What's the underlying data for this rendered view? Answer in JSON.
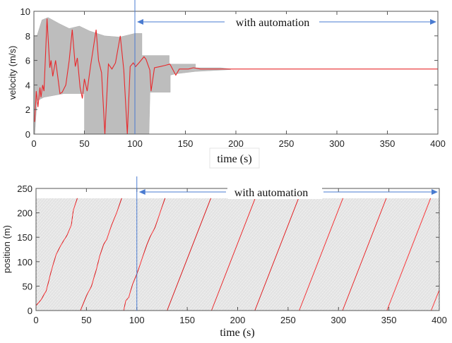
{
  "colors": {
    "trajectory": "#e8282b",
    "ensemble": "#bdbdbd",
    "annotation": "#4a7bd0",
    "axis": "#555555"
  },
  "chart_data": [
    {
      "type": "line",
      "ylabel": "velocity (m/s)",
      "xlabel": "time (s)",
      "xlim": [
        0,
        400
      ],
      "ylim": [
        0,
        10
      ],
      "xticks": [
        "0",
        "50",
        "100",
        "150",
        "200",
        "250",
        "300",
        "350",
        "400"
      ],
      "yticks": [
        "0",
        "2",
        "4",
        "6",
        "8",
        "10"
      ],
      "annotation": {
        "text": "with automation",
        "marker_time": 100,
        "arrow_from": 100,
        "arrow_to": 400
      },
      "series": [
        {
          "role": "highlighted vehicle",
          "color": "#e8282b",
          "points": [
            [
              0.7,
              1
            ],
            [
              2.3,
              3.5
            ],
            [
              4,
              2.2
            ],
            [
              6,
              3.8
            ],
            [
              7,
              3
            ],
            [
              8.7,
              4
            ],
            [
              10,
              3.5
            ],
            [
              13,
              9.4
            ],
            [
              15.7,
              5.4
            ],
            [
              17,
              6
            ],
            [
              18.7,
              4.7
            ],
            [
              21.5,
              6
            ],
            [
              23.4,
              4.8
            ],
            [
              25.8,
              3.3
            ],
            [
              28,
              3.4
            ],
            [
              31.6,
              4
            ],
            [
              35,
              6
            ],
            [
              38,
              8.5
            ],
            [
              41,
              5.5
            ],
            [
              43,
              6.2
            ],
            [
              45.7,
              3.8
            ],
            [
              48,
              2.9
            ],
            [
              50,
              4.5
            ],
            [
              52.7,
              3.5
            ],
            [
              56,
              5.5
            ],
            [
              61.6,
              8.5
            ],
            [
              64,
              6
            ],
            [
              67,
              5
            ],
            [
              70.3,
              0
            ],
            [
              73.8,
              5.7
            ],
            [
              77.3,
              5.3
            ],
            [
              80.8,
              5.8
            ],
            [
              85.5,
              8
            ],
            [
              89,
              5.2
            ],
            [
              92.5,
              0
            ],
            [
              95.3,
              5.5
            ],
            [
              98.4,
              5.8
            ],
            [
              100.7,
              5.5
            ],
            [
              104,
              5.8
            ],
            [
              109,
              6.3
            ],
            [
              111,
              6.1
            ],
            [
              114.8,
              5.2
            ],
            [
              116,
              3.5
            ],
            [
              119.4,
              5.4
            ],
            [
              125,
              5.5
            ],
            [
              130,
              5.6
            ],
            [
              134.7,
              5.7
            ],
            [
              140.5,
              4.8
            ],
            [
              144,
              5.3
            ],
            [
              153,
              5.3
            ],
            [
              158,
              5.4
            ],
            [
              165,
              5.3
            ],
            [
              188,
              5.3
            ],
            [
              400,
              5.3
            ]
          ]
        },
        {
          "role": "all vehicles (envelope)",
          "color": "#bdbdbd",
          "upper": [
            [
              0,
              8
            ],
            [
              3,
              8
            ],
            [
              8,
              9.3
            ],
            [
              14,
              9.5
            ],
            [
              25,
              9
            ],
            [
              35,
              8.6
            ],
            [
              45,
              8.8
            ],
            [
              55,
              8.4
            ],
            [
              70,
              8
            ],
            [
              85,
              7.9
            ],
            [
              100,
              8.2
            ],
            [
              107,
              8.2
            ],
            [
              107,
              6.4
            ],
            [
              134,
              6.4
            ],
            [
              134,
              5.7
            ],
            [
              160,
              5.7
            ],
            [
              160,
              5.4
            ],
            [
              185,
              5.4
            ],
            [
              195,
              5.3
            ]
          ],
          "lower": [
            [
              195,
              5.25
            ],
            [
              160,
              5.1
            ],
            [
              150,
              5
            ],
            [
              140,
              4.9
            ],
            [
              135,
              4.8
            ],
            [
              135,
              3.4
            ],
            [
              115,
              3.4
            ],
            [
              114,
              0
            ],
            [
              50,
              0
            ],
            [
              50,
              3.3
            ],
            [
              30,
              3.3
            ],
            [
              10,
              3
            ],
            [
              3,
              2.7
            ],
            [
              1,
              0
            ],
            [
              0,
              0
            ]
          ]
        }
      ]
    },
    {
      "type": "line",
      "ylabel": "position (m)",
      "xlabel": "time (s)",
      "xlim": [
        0,
        400
      ],
      "ylim": [
        0,
        250
      ],
      "xticks": [
        "0",
        "50",
        "100",
        "150",
        "200",
        "250",
        "300",
        "350",
        "400"
      ],
      "yticks": [
        "0",
        "50",
        "100",
        "150",
        "200",
        "250"
      ],
      "annotation": {
        "text": "with automation",
        "marker_time": 100,
        "arrow_from": 100,
        "arrow_to": 400
      },
      "ring_length": 230,
      "series": [
        {
          "role": "highlighted vehicle",
          "color": "#e8282b",
          "segments": [
            [
              [
                0,
                10
              ],
              [
                5,
                22
              ],
              [
                10,
                40
              ],
              [
                12,
                55
              ],
              [
                15,
                80
              ],
              [
                20,
                115
              ],
              [
                25,
                135
              ],
              [
                31,
                155
              ],
              [
                35,
                175
              ],
              [
                37,
                205
              ],
              [
                41,
                230
              ]
            ],
            [
              [
                44,
                0
              ],
              [
                50,
                30
              ],
              [
                55,
                50
              ],
              [
                60,
                85
              ],
              [
                63,
                110
              ],
              [
                67,
                135
              ],
              [
                70,
                145
              ],
              [
                75,
                175
              ],
              [
                80,
                200
              ],
              [
                85,
                230
              ]
            ],
            [
              [
                87,
                0
              ],
              [
                89,
                20
              ],
              [
                92,
                27
              ],
              [
                96,
                55
              ],
              [
                100,
                75
              ],
              [
                105,
                105
              ],
              [
                110,
                135
              ],
              [
                113,
                150
              ],
              [
                118,
                170
              ],
              [
                128,
                230
              ]
            ],
            [
              [
                130,
                0
              ],
              [
                173.4,
                230
              ]
            ],
            [
              [
                174,
                0
              ],
              [
                217.4,
                230
              ]
            ],
            [
              [
                217,
                0
              ],
              [
                260.4,
                230
              ]
            ],
            [
              [
                261,
                0
              ],
              [
                304.4,
                230
              ]
            ],
            [
              [
                304,
                0
              ],
              [
                347.4,
                230
              ]
            ],
            [
              [
                348,
                0
              ],
              [
                391.4,
                230
              ]
            ],
            [
              [
                392,
                0
              ],
              [
                400,
                42
              ]
            ]
          ]
        },
        {
          "role": "all vehicles",
          "color": "#9a9a9a",
          "speed": 5.3,
          "spacing_s": 1.3
        }
      ]
    }
  ]
}
